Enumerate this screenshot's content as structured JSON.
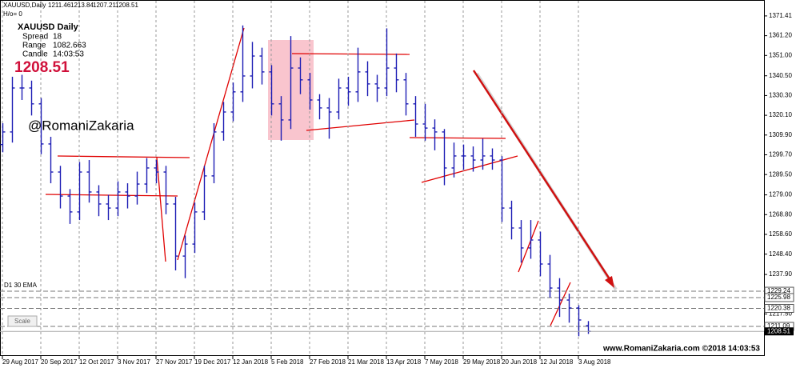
{
  "header": {
    "symbol": "XAUUSD,Daily",
    "hlo": "H/o= 0"
  },
  "info": {
    "title": "XAUUSD   Daily",
    "spread_label": "Spread",
    "spread": "18",
    "range_label": "Range",
    "range": "1082.663",
    "candle_label": "Candle",
    "candle": "14:03:53"
  },
  "watermark": "@RomaniZakaria",
  "indicator": "D1 30 EMA",
  "scale_button": "Scale",
  "footer": "www.RomaniZakaria.com ©2018 14:03:53",
  "chart_data": {
    "type": "ohlc",
    "color": "#1c1cb4",
    "categories": [
      "29 Aug 2017",
      null,
      null,
      null,
      "20 Sep 2017",
      null,
      null,
      null,
      "12 Oct 2017",
      null,
      null,
      null,
      "3 Nov 2017",
      null,
      null,
      null,
      "27 Nov 2017",
      null,
      null,
      null,
      "19 Dec 2017",
      null,
      null,
      null,
      "12 Jan 2018",
      null,
      null,
      null,
      "5 Feb 2018",
      null,
      null,
      null,
      "27 Feb 2018",
      null,
      null,
      null,
      "21 Mar 2018",
      null,
      null,
      null,
      "13 Apr 2018",
      null,
      null,
      null,
      "7 May 2018",
      null,
      null,
      null,
      "29 May 2018",
      null,
      null,
      null,
      "20 Jun 2018",
      null,
      null,
      null,
      "12 Jul 2018",
      null,
      null,
      null,
      "3 Aug 2018",
      null
    ],
    "open": [
      1305.0,
      1311.5,
      1334.2,
      1334.2,
      1326.0,
      1305.3,
      1290.8,
      1278.4,
      1270.2,
      1290.8,
      1280.5,
      1274.3,
      1272.2,
      1280.5,
      1278.4,
      1284.6,
      1292.9,
      1290.8,
      1274.3,
      1247.4,
      1253.6,
      1270.2,
      1288.8,
      1311.5,
      1321.8,
      1332.2,
      1340.4,
      1350.7,
      1342.5,
      1326.0,
      1317.7,
      1344.5,
      1338.4,
      1328.0,
      1323.9,
      1321.8,
      1334.2,
      1332.2,
      1342.5,
      1336.3,
      1334.2,
      1344.5,
      1338.4,
      1326.0,
      1315.6,
      1313.5,
      1311.5,
      1292.9,
      1299.1,
      1299.1,
      1297.0,
      1299.1,
      1297.0,
      1272.2,
      1261.9,
      1251.6,
      1255.7,
      1243.3,
      1230.9,
      1224.7,
      1220.6,
      1211.46
    ],
    "high": [
      1316,
      1340,
      1341,
      1338,
      1329,
      1309,
      1294,
      1282,
      1296,
      1297,
      1284,
      1279,
      1286,
      1285,
      1291,
      1298,
      1297,
      1294,
      1278,
      1258,
      1275,
      1294,
      1316,
      1327,
      1337,
      1366.5,
      1358,
      1355,
      1346,
      1330,
      1361,
      1350,
      1342,
      1331,
      1329,
      1339,
      1340,
      1355,
      1348,
      1341,
      1365,
      1352,
      1342,
      1330,
      1326,
      1318,
      1313,
      1306,
      1305,
      1304,
      1308,
      1303,
      1299,
      1276,
      1266,
      1266,
      1260,
      1248,
      1236,
      1228,
      1222,
      1213.84
    ],
    "low": [
      1301,
      1306,
      1328,
      1320,
      1300,
      1285,
      1272,
      1264,
      1266,
      1275,
      1268,
      1266,
      1268,
      1272,
      1274,
      1280,
      1285,
      1269,
      1240,
      1236,
      1249,
      1266,
      1285,
      1307,
      1317,
      1327,
      1334,
      1336,
      1320,
      1307,
      1313,
      1331,
      1323,
      1318,
      1308,
      1318,
      1325,
      1327,
      1330,
      1327,
      1330,
      1332,
      1320,
      1309,
      1307,
      1302,
      1284,
      1288,
      1292,
      1291,
      1292,
      1292,
      1265,
      1256,
      1244,
      1246,
      1237,
      1226,
      1216,
      1213,
      1206,
      1207.21
    ],
    "close": [
      1311.5,
      1334.2,
      1334.2,
      1326.0,
      1305.3,
      1290.8,
      1278.4,
      1270.2,
      1290.8,
      1280.5,
      1274.3,
      1272.2,
      1280.5,
      1278.4,
      1284.6,
      1292.9,
      1290.8,
      1274.3,
      1247.4,
      1253.6,
      1270.2,
      1288.8,
      1311.5,
      1321.8,
      1332.2,
      1340.4,
      1350.7,
      1342.5,
      1326.0,
      1317.7,
      1344.5,
      1338.4,
      1328.0,
      1323.9,
      1321.8,
      1334.2,
      1332.2,
      1342.5,
      1336.3,
      1334.2,
      1344.5,
      1338.4,
      1326.0,
      1315.6,
      1313.5,
      1311.5,
      1292.9,
      1299.1,
      1299.1,
      1297.0,
      1299.1,
      1297.0,
      1272.2,
      1261.9,
      1251.6,
      1255.7,
      1243.3,
      1230.9,
      1224.7,
      1220.6,
      1214.4,
      1208.51
    ],
    "ylim": [
      1195.8,
      1375.5
    ],
    "yticks": [
      1371.41,
      {
        "value": 1361.2,
        "label": "1361.20"
      },
      {
        "value": 1351,
        "label": "1351.00"
      },
      {
        "value": 1340.5,
        "label": "1340.50"
      },
      {
        "value": 1330.3,
        "label": "1330.30"
      },
      {
        "value": 1320.1,
        "label": "1320.10"
      },
      {
        "value": 1309.9,
        "label": "1309.90"
      },
      {
        "value": 1299.7,
        "label": "1299.70"
      },
      {
        "value": 1289.5,
        "label": "1289.50"
      },
      {
        "value": 1279,
        "label": "1279.00"
      },
      {
        "value": 1268.8,
        "label": "1268.80"
      },
      {
        "value": 1258.6,
        "label": "1258.60"
      },
      {
        "value": 1248.4,
        "label": "1248.40"
      },
      {
        "value": 1237.9,
        "label": "1237.90"
      },
      {
        "value": 1217.5,
        "label": "1217.50"
      }
    ],
    "levels": [
      1229.24,
      1225.98,
      1220.38,
      1211.09
    ],
    "grid": true
  }
}
